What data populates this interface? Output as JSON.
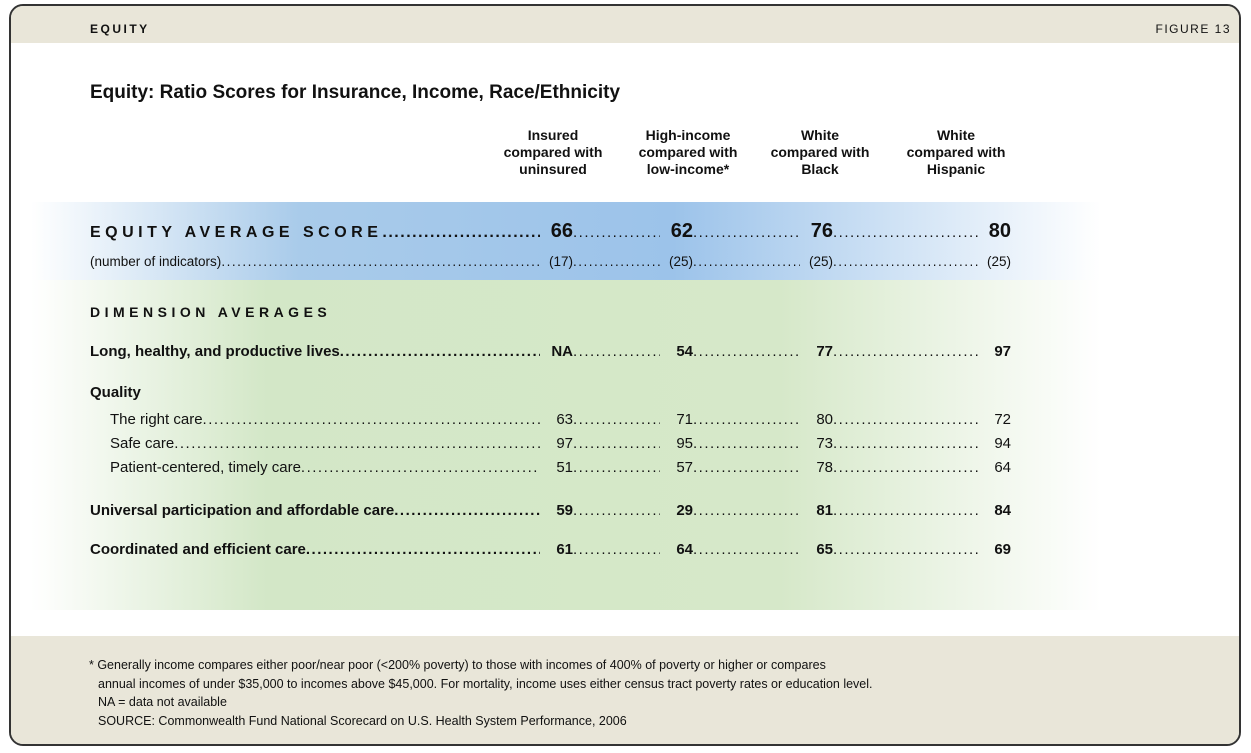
{
  "header": {
    "section": "EQUITY",
    "figure": "FIGURE 13"
  },
  "title": "Equity: Ratio Scores for Insurance, Income, Race/Ethnicity",
  "table": {
    "columns": [
      [
        "Insured",
        "compared with",
        "uninsured"
      ],
      [
        "High-income",
        "compared with",
        "low-income*"
      ],
      [
        "White",
        "compared with",
        "Black"
      ],
      [
        "White",
        "compared with",
        "Hispanic"
      ]
    ],
    "average": {
      "label": "EQUITY AVERAGE SCORE",
      "values": [
        66,
        62,
        76,
        80
      ]
    },
    "indicators": {
      "label": "(number of indicators)",
      "values": [
        "(17)",
        "(25)",
        "(25)",
        "(25)"
      ]
    },
    "dimensions_heading": "DIMENSION AVERAGES",
    "rows": [
      {
        "label": "Long, healthy, and productive lives",
        "values": [
          "NA",
          54,
          77,
          97
        ]
      },
      {
        "label": "Quality",
        "subrows": [
          {
            "label": "The right care",
            "values": [
              63,
              71,
              80,
              72
            ]
          },
          {
            "label": "Safe care",
            "values": [
              97,
              95,
              73,
              94
            ]
          },
          {
            "label": "Patient-centered, timely care",
            "values": [
              51,
              57,
              78,
              64
            ]
          }
        ]
      },
      {
        "label": "Universal participation and affordable care",
        "values": [
          59,
          29,
          81,
          84
        ]
      },
      {
        "label": "Coordinated and efficient care",
        "values": [
          61,
          64,
          65,
          69
        ]
      }
    ]
  },
  "notes": [
    "* Generally income compares either poor/near poor (<200% poverty) to those with incomes of 400% of poverty or higher or compares",
    "annual incomes of under $35,000 to incomes above $45,000. For mortality, income uses either census tract poverty rates or education level.",
    "NA = data not available",
    "SOURCE: Commonwealth Fund National Scorecard on U.S. Health System Performance, 2006"
  ]
}
